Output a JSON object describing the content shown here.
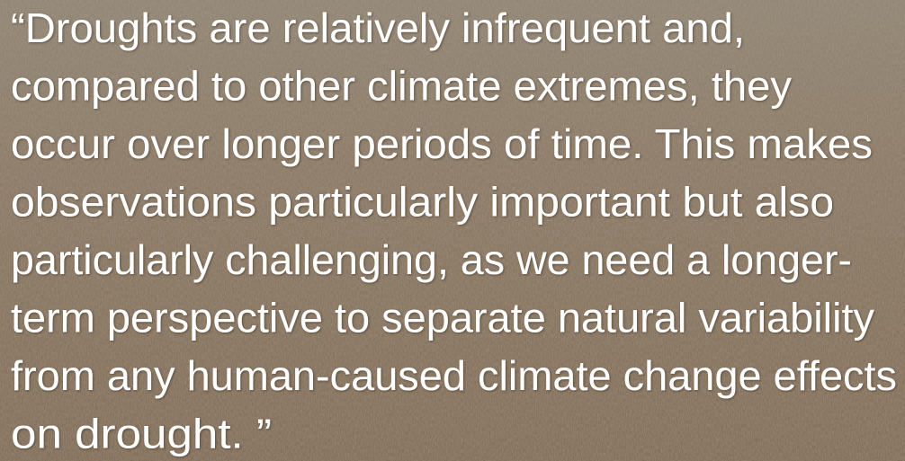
{
  "quote": {
    "lines": [
      "“Droughts are relatively infrequent and,",
      "compared to other climate extremes, they",
      "occur over longer periods of time. This makes",
      "observations particularly important but also",
      "particularly challenging, as we need a longer-",
      "term perspective to separate natural variability",
      "from any human-caused climate change effects",
      "on drought. ”"
    ]
  }
}
